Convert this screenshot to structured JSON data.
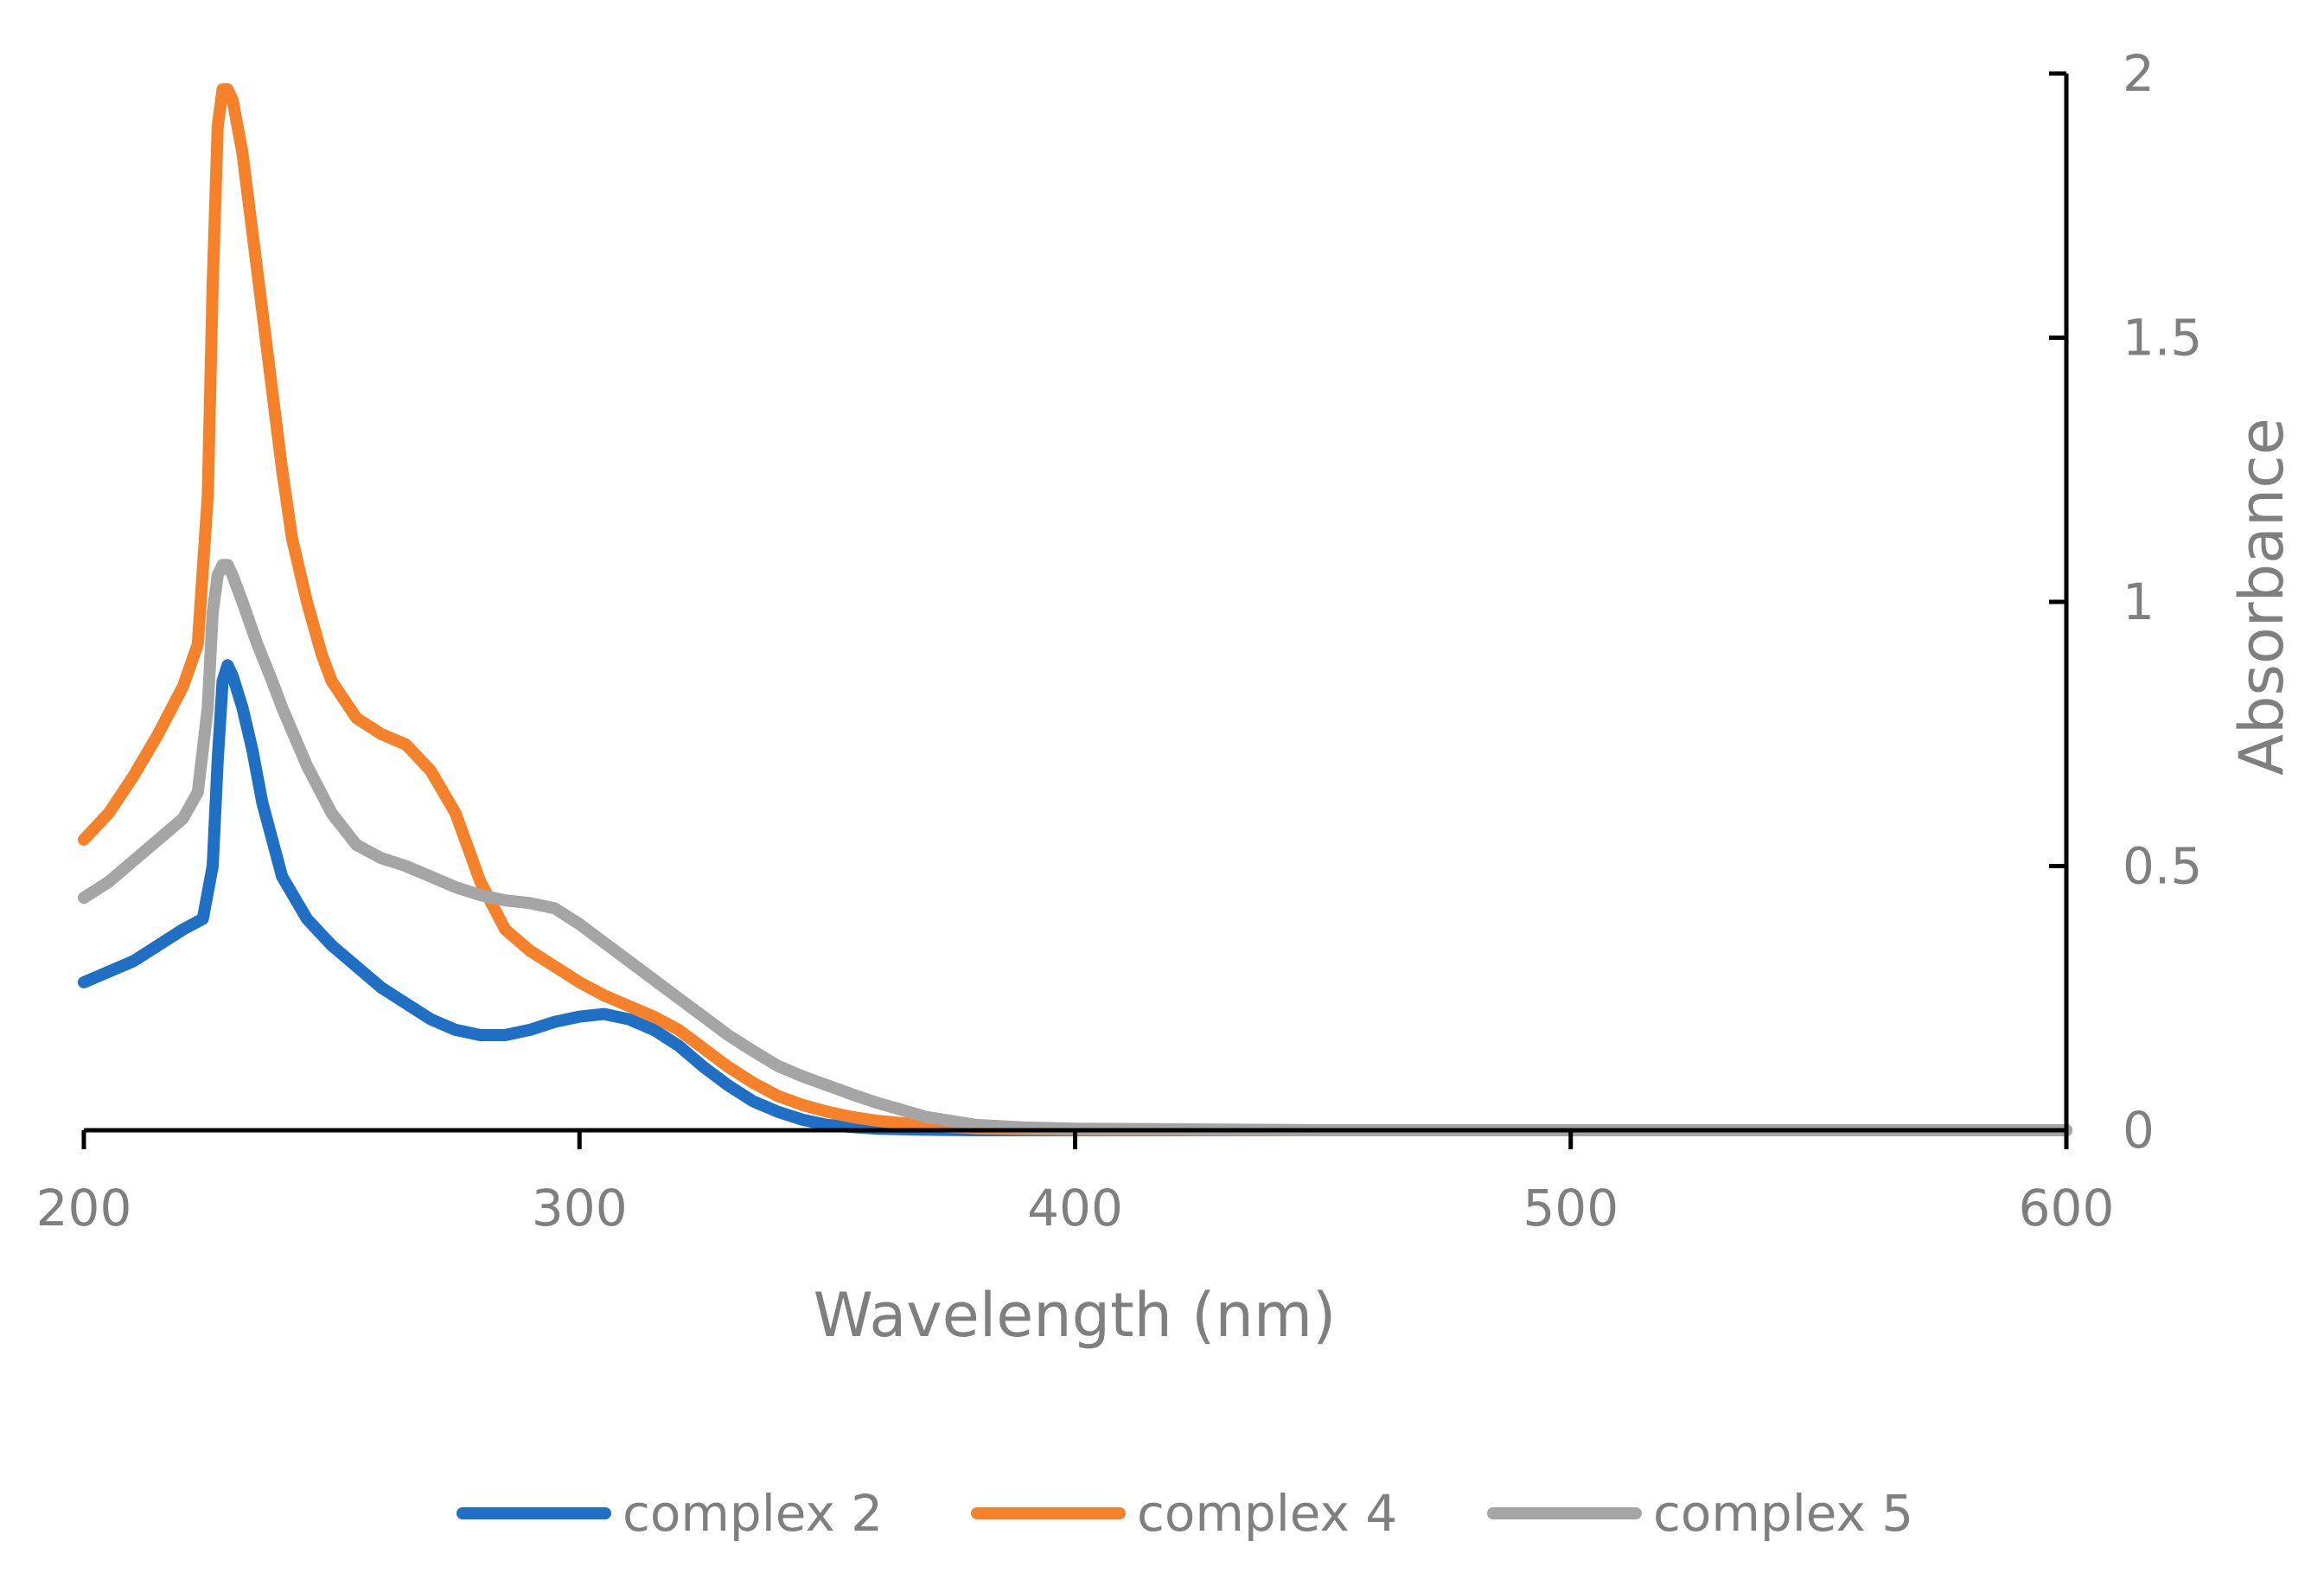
{
  "chart_data": {
    "type": "line",
    "title": "",
    "xlabel": "Wavelength (nm)",
    "ylabel": "Absorbance",
    "xlim": [
      200,
      600
    ],
    "ylim": [
      0,
      2
    ],
    "xticks": [
      "200",
      "300",
      "400",
      "500",
      "600"
    ],
    "yticks": [
      "0",
      "0.5",
      "1",
      "1.5",
      "2"
    ],
    "y_axis_side": "right",
    "grid": false,
    "legend_position": "bottom",
    "series": [
      {
        "name": "complex 2",
        "color": "#1f6fc5",
        "x": [
          200,
          205,
          210,
          215,
          220,
          224,
          226,
          227,
          228,
          229,
          230,
          232,
          234,
          236,
          240,
          245,
          250,
          255,
          260,
          265,
          270,
          275,
          280,
          285,
          290,
          295,
          300,
          305,
          310,
          315,
          320,
          325,
          330,
          335,
          340,
          345,
          350,
          355,
          360,
          370,
          380,
          400,
          450,
          500,
          550,
          600
        ],
        "y": [
          0.28,
          0.3,
          0.32,
          0.35,
          0.38,
          0.4,
          0.5,
          0.7,
          0.85,
          0.88,
          0.86,
          0.8,
          0.72,
          0.62,
          0.48,
          0.4,
          0.35,
          0.31,
          0.27,
          0.24,
          0.21,
          0.19,
          0.18,
          0.18,
          0.19,
          0.205,
          0.215,
          0.22,
          0.21,
          0.19,
          0.16,
          0.12,
          0.085,
          0.055,
          0.035,
          0.02,
          0.01,
          0.006,
          0.003,
          0.001,
          0.0,
          0.0,
          0.0,
          0.0,
          0.0,
          0.0
        ]
      },
      {
        "name": "complex 4",
        "color": "#f5822a",
        "x": [
          200,
          205,
          210,
          215,
          220,
          223,
          225,
          226,
          227,
          228,
          229,
          230,
          232,
          234,
          236,
          238,
          240,
          242,
          245,
          248,
          250,
          255,
          260,
          265,
          270,
          275,
          280,
          285,
          290,
          295,
          300,
          305,
          310,
          315,
          320,
          325,
          330,
          335,
          340,
          345,
          350,
          355,
          360,
          370,
          380,
          390,
          400,
          450,
          500,
          550,
          600
        ],
        "y": [
          0.55,
          0.6,
          0.67,
          0.75,
          0.84,
          0.92,
          1.2,
          1.6,
          1.9,
          1.97,
          1.97,
          1.95,
          1.85,
          1.7,
          1.55,
          1.4,
          1.25,
          1.12,
          1.0,
          0.9,
          0.85,
          0.78,
          0.75,
          0.73,
          0.68,
          0.6,
          0.47,
          0.38,
          0.34,
          0.31,
          0.28,
          0.255,
          0.235,
          0.215,
          0.19,
          0.155,
          0.12,
          0.09,
          0.065,
          0.048,
          0.035,
          0.025,
          0.018,
          0.009,
          0.004,
          0.002,
          0.001,
          0.0,
          0.0,
          0.0,
          0.0
        ]
      },
      {
        "name": "complex 5",
        "color": "#a5a5a5",
        "x": [
          200,
          205,
          210,
          215,
          220,
          223,
          225,
          226,
          227,
          228,
          229,
          230,
          232,
          235,
          238,
          240,
          245,
          250,
          255,
          260,
          265,
          270,
          275,
          280,
          285,
          290,
          295,
          300,
          305,
          310,
          315,
          320,
          325,
          330,
          335,
          340,
          345,
          350,
          355,
          360,
          370,
          380,
          390,
          400,
          450,
          500,
          550,
          600
        ],
        "y": [
          0.44,
          0.47,
          0.51,
          0.55,
          0.59,
          0.64,
          0.8,
          0.98,
          1.05,
          1.07,
          1.07,
          1.05,
          1.0,
          0.92,
          0.85,
          0.8,
          0.69,
          0.6,
          0.54,
          0.515,
          0.5,
          0.48,
          0.46,
          0.445,
          0.435,
          0.43,
          0.42,
          0.39,
          0.355,
          0.32,
          0.285,
          0.25,
          0.215,
          0.18,
          0.15,
          0.122,
          0.102,
          0.085,
          0.068,
          0.052,
          0.025,
          0.01,
          0.005,
          0.003,
          0.0,
          0.0,
          0.0,
          0.0
        ]
      }
    ]
  }
}
